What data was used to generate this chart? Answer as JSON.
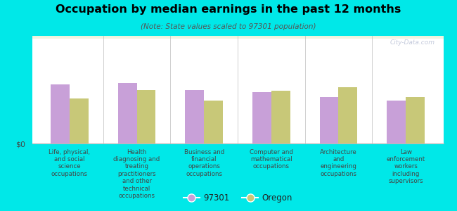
{
  "title": "Occupation by median earnings in the past 12 months",
  "subtitle": "(Note: State values scaled to 97301 population)",
  "background_color": "#00e8e8",
  "plot_bg_color_top": "#ddeebb",
  "plot_bg_color_bottom": "#f0f5e0",
  "categories": [
    "Life, physical,\nand social\nscience\noccupations",
    "Health\ndiagnosing and\ntreating\npractitioners\nand other\ntechnical\noccupations",
    "Business and\nfinancial\noperations\noccupations",
    "Computer and\nmathematical\noccupations",
    "Architecture\nand\nengineering\noccupations",
    "Law\nenforcement\nworkers\nincluding\nsupervisors"
  ],
  "values_97301": [
    0.55,
    0.56,
    0.5,
    0.48,
    0.43,
    0.4
  ],
  "values_oregon": [
    0.42,
    0.5,
    0.4,
    0.49,
    0.52,
    0.43
  ],
  "color_97301": "#c8a0d8",
  "color_oregon": "#c8c878",
  "legend_label_1": "97301",
  "legend_label_2": "Oregon",
  "ylabel": "$0",
  "watermark": "City-Data.com",
  "label_color": "#444444",
  "title_color": "#000000",
  "subtitle_color": "#555555"
}
